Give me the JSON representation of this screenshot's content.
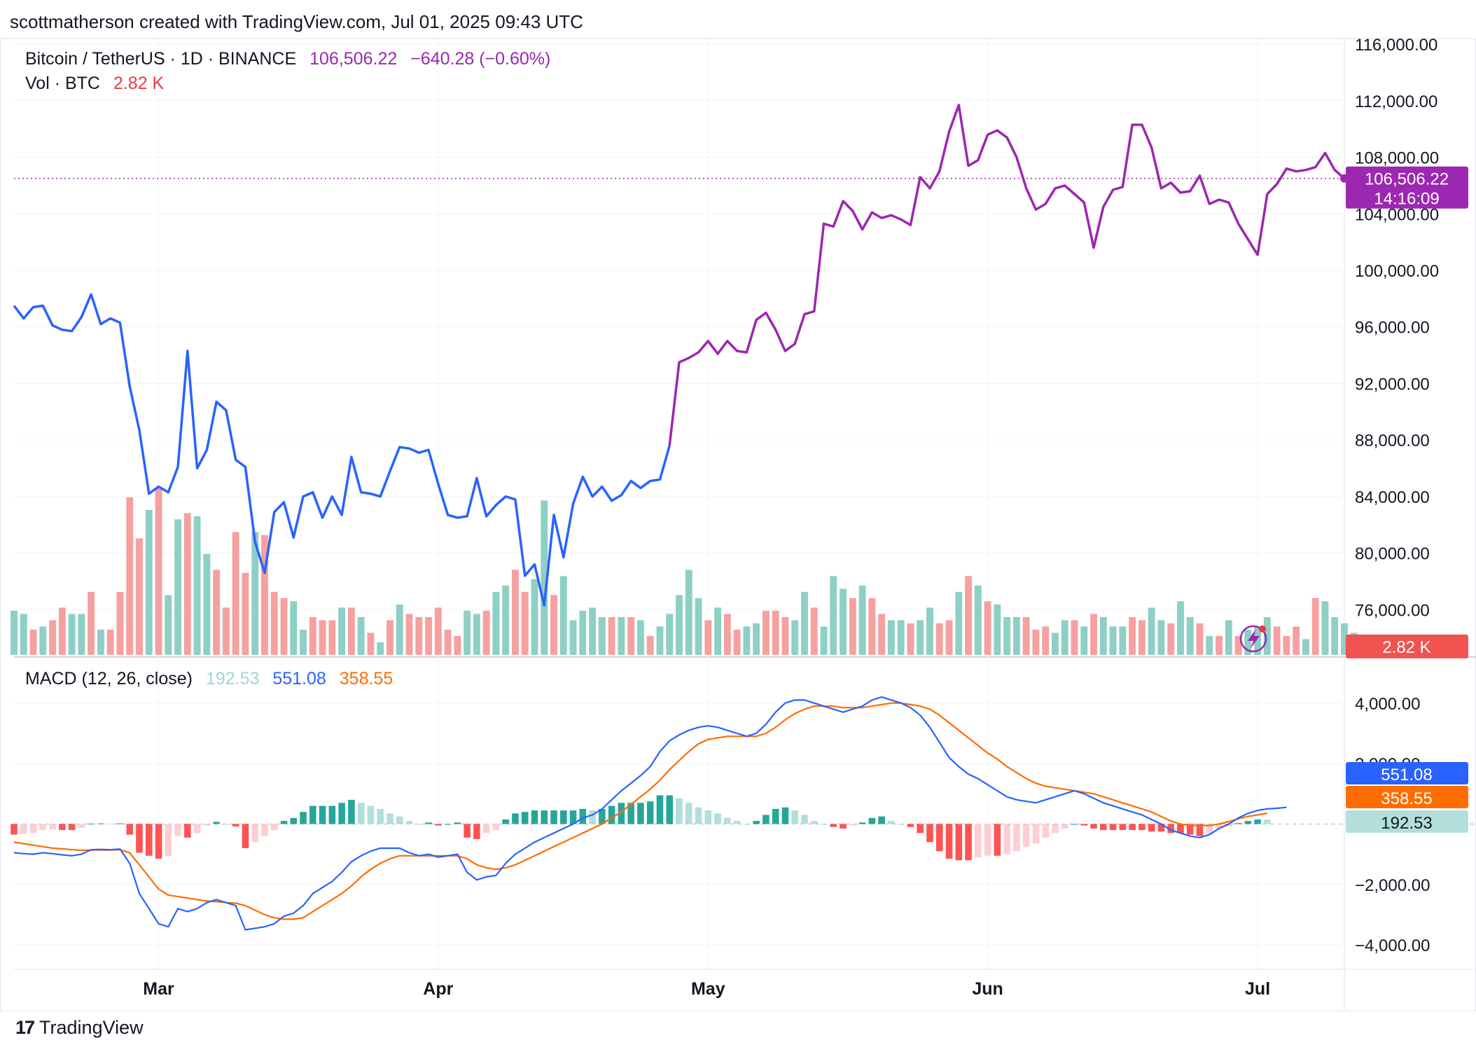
{
  "credit": "scottmatherson created with TradingView.com, Jul 01, 2025 09:43 UTC",
  "legend": {
    "symbol": "Bitcoin / TetherUS · 1D · BINANCE",
    "last_price": "106,506.22",
    "change": "−640.28 (−0.60%)",
    "vol_label": "Vol · BTC",
    "vol_value": "2.82 K",
    "macd_label": "MACD (12, 26, close)",
    "macd_hist": "192.53",
    "macd_line": "551.08",
    "macd_signal": "358.55"
  },
  "price_tag": {
    "price": "106,506.22",
    "countdown": "14:16:09"
  },
  "vol_tag": "2.82 K",
  "macd_tags": {
    "macd": "551.08",
    "signal": "358.55",
    "hist": "192.53"
  },
  "footer": {
    "brand": "TradingView"
  },
  "colors": {
    "price_blue": "#2962ff",
    "price_purple": "#9c27b0",
    "vol_up": "#8ecfc6",
    "vol_down": "#f6a0a0",
    "hist_up_strong": "#26a69a",
    "hist_up_weak": "#b2dfdb",
    "hist_down_strong": "#ff5252",
    "hist_down_weak": "#ffcdd2",
    "macd_line": "#2962ff",
    "signal_line": "#ff6d00"
  },
  "chart_data": {
    "type": "line",
    "price_axis": {
      "ticks": [
        "116,000.00",
        "112,000.00",
        "108,000.00",
        "104,000.00",
        "100,000.00",
        "96,000.00",
        "92,000.00",
        "88,000.00",
        "84,000.00",
        "80,000.00",
        "76,000.00"
      ],
      "tick_values": [
        116000,
        112000,
        108000,
        104000,
        100000,
        96000,
        92000,
        88000,
        84000,
        80000,
        76000
      ],
      "range": [
        72800,
        116400
      ]
    },
    "time_axis": {
      "labels": [
        "Mar",
        "Apr",
        "May",
        "Jun",
        "Jul"
      ],
      "label_index": [
        15,
        44,
        72,
        101,
        129
      ]
    },
    "price": [
      97500,
      96600,
      97400,
      97500,
      96100,
      95800,
      95700,
      96700,
      98300,
      96200,
      96600,
      96300,
      91800,
      88700,
      84200,
      84700,
      84300,
      86100,
      94300,
      86000,
      87300,
      90700,
      90100,
      86600,
      86100,
      80800,
      78600,
      82900,
      83600,
      81100,
      84000,
      84300,
      82500,
      84000,
      82700,
      86800,
      84300,
      84200,
      84000,
      85800,
      87500,
      87400,
      87100,
      87300,
      84900,
      82700,
      82500,
      82600,
      85300,
      82600,
      83400,
      84000,
      83800,
      78400,
      79200,
      76300,
      82700,
      79700,
      83500,
      85400,
      84000,
      84700,
      83700,
      84100,
      85100,
      84600,
      85100,
      85200,
      87600,
      93500,
      93800,
      94200,
      95000,
      94100,
      95000,
      94300,
      94200,
      96500,
      97000,
      95800,
      94300,
      94800,
      96900,
      97100,
      103300,
      103100,
      104900,
      104200,
      102900,
      104100,
      103700,
      103900,
      103600,
      103200,
      106600,
      105800,
      107000,
      109800,
      111700,
      107400,
      107800,
      109600,
      109900,
      109400,
      108000,
      105800,
      104300,
      104700,
      105800,
      106000,
      105400,
      104800,
      101600,
      104500,
      105700,
      105900,
      110300,
      110300,
      108700,
      105800,
      106200,
      105500,
      105600,
      106700,
      104700,
      105000,
      104800,
      103300,
      102200,
      101100,
      105400,
      106100,
      107200,
      107000,
      107100,
      107300,
      108300,
      107100,
      106506
    ],
    "color_split_index": 68,
    "volume": [
      {
        "v": 14,
        "up": true
      },
      {
        "v": 13,
        "up": true
      },
      {
        "v": 8,
        "up": false
      },
      {
        "v": 9,
        "up": true
      },
      {
        "v": 11,
        "up": false
      },
      {
        "v": 15,
        "up": false
      },
      {
        "v": 13,
        "up": true
      },
      {
        "v": 13,
        "up": true
      },
      {
        "v": 20,
        "up": false
      },
      {
        "v": 8,
        "up": true
      },
      {
        "v": 8,
        "up": false
      },
      {
        "v": 20,
        "up": false
      },
      {
        "v": 50,
        "up": false
      },
      {
        "v": 37,
        "up": false
      },
      {
        "v": 46,
        "up": true
      },
      {
        "v": 53,
        "up": false
      },
      {
        "v": 19,
        "up": true
      },
      {
        "v": 43,
        "up": true
      },
      {
        "v": 45,
        "up": false
      },
      {
        "v": 44,
        "up": true
      },
      {
        "v": 32,
        "up": true
      },
      {
        "v": 27,
        "up": false
      },
      {
        "v": 15,
        "up": false
      },
      {
        "v": 39,
        "up": false
      },
      {
        "v": 26,
        "up": false
      },
      {
        "v": 39,
        "up": true
      },
      {
        "v": 38,
        "up": false
      },
      {
        "v": 20,
        "up": false
      },
      {
        "v": 18,
        "up": false
      },
      {
        "v": 17,
        "up": true
      },
      {
        "v": 8,
        "up": true
      },
      {
        "v": 12,
        "up": false
      },
      {
        "v": 11,
        "up": false
      },
      {
        "v": 11,
        "up": false
      },
      {
        "v": 15,
        "up": true
      },
      {
        "v": 15,
        "up": false
      },
      {
        "v": 12,
        "up": true
      },
      {
        "v": 7,
        "up": false
      },
      {
        "v": 4,
        "up": true
      },
      {
        "v": 11,
        "up": false
      },
      {
        "v": 16,
        "up": true
      },
      {
        "v": 13,
        "up": false
      },
      {
        "v": 12,
        "up": false
      },
      {
        "v": 12,
        "up": false
      },
      {
        "v": 15,
        "up": false
      },
      {
        "v": 8,
        "up": false
      },
      {
        "v": 6,
        "up": false
      },
      {
        "v": 14,
        "up": true
      },
      {
        "v": 13,
        "up": true
      },
      {
        "v": 14,
        "up": false
      },
      {
        "v": 20,
        "up": true
      },
      {
        "v": 22,
        "up": true
      },
      {
        "v": 27,
        "up": false
      },
      {
        "v": 20,
        "up": false
      },
      {
        "v": 24,
        "up": true
      },
      {
        "v": 49,
        "up": true
      },
      {
        "v": 19,
        "up": false
      },
      {
        "v": 25,
        "up": true
      },
      {
        "v": 11,
        "up": true
      },
      {
        "v": 14,
        "up": true
      },
      {
        "v": 15,
        "up": true
      },
      {
        "v": 12,
        "up": true
      },
      {
        "v": 12,
        "up": false
      },
      {
        "v": 12,
        "up": true
      },
      {
        "v": 12,
        "up": false
      },
      {
        "v": 11,
        "up": true
      },
      {
        "v": 6,
        "up": false
      },
      {
        "v": 9,
        "up": true
      },
      {
        "v": 13,
        "up": true
      },
      {
        "v": 19,
        "up": true
      },
      {
        "v": 27,
        "up": true
      },
      {
        "v": 18,
        "up": true
      },
      {
        "v": 11,
        "up": false
      },
      {
        "v": 15,
        "up": true
      },
      {
        "v": 13,
        "up": false
      },
      {
        "v": 8,
        "up": false
      },
      {
        "v": 9,
        "up": true
      },
      {
        "v": 10,
        "up": true
      },
      {
        "v": 14,
        "up": false
      },
      {
        "v": 14,
        "up": false
      },
      {
        "v": 12,
        "up": false
      },
      {
        "v": 11,
        "up": true
      },
      {
        "v": 20,
        "up": true
      },
      {
        "v": 15,
        "up": false
      },
      {
        "v": 9,
        "up": true
      },
      {
        "v": 25,
        "up": true
      },
      {
        "v": 21,
        "up": true
      },
      {
        "v": 18,
        "up": false
      },
      {
        "v": 22,
        "up": true
      },
      {
        "v": 18,
        "up": false
      },
      {
        "v": 13,
        "up": false
      },
      {
        "v": 11,
        "up": true
      },
      {
        "v": 11,
        "up": true
      },
      {
        "v": 10,
        "up": false
      },
      {
        "v": 11,
        "up": true
      },
      {
        "v": 15,
        "up": true
      },
      {
        "v": 10,
        "up": false
      },
      {
        "v": 11,
        "up": false
      },
      {
        "v": 20,
        "up": true
      },
      {
        "v": 25,
        "up": false
      },
      {
        "v": 22,
        "up": true
      },
      {
        "v": 17,
        "up": false
      },
      {
        "v": 16,
        "up": true
      },
      {
        "v": 12,
        "up": true
      },
      {
        "v": 12,
        "up": true
      },
      {
        "v": 12,
        "up": false
      },
      {
        "v": 8,
        "up": false
      },
      {
        "v": 9,
        "up": false
      },
      {
        "v": 7,
        "up": true
      },
      {
        "v": 11,
        "up": true
      },
      {
        "v": 11,
        "up": false
      },
      {
        "v": 9,
        "up": true
      },
      {
        "v": 13,
        "up": false
      },
      {
        "v": 12,
        "up": true
      },
      {
        "v": 9,
        "up": true
      },
      {
        "v": 9,
        "up": true
      },
      {
        "v": 12,
        "up": false
      },
      {
        "v": 11,
        "up": false
      },
      {
        "v": 15,
        "up": true
      },
      {
        "v": 11,
        "up": true
      },
      {
        "v": 10,
        "up": false
      },
      {
        "v": 17,
        "up": true
      },
      {
        "v": 12,
        "up": true
      },
      {
        "v": 10,
        "up": false
      },
      {
        "v": 6,
        "up": true
      },
      {
        "v": 6,
        "up": false
      },
      {
        "v": 11,
        "up": true
      },
      {
        "v": 6,
        "up": false
      },
      {
        "v": 8,
        "up": true
      },
      {
        "v": 9,
        "up": true
      },
      {
        "v": 12,
        "up": true
      },
      {
        "v": 9,
        "up": false
      },
      {
        "v": 6,
        "up": false
      },
      {
        "v": 9,
        "up": false
      },
      {
        "v": 5,
        "up": true
      },
      {
        "v": 18,
        "up": false
      },
      {
        "v": 17,
        "up": true
      },
      {
        "v": 12,
        "up": true
      },
      {
        "v": 10,
        "up": true
      },
      {
        "v": 7,
        "up": true
      },
      {
        "v": 3,
        "up": true
      },
      {
        "v": 5,
        "up": true
      },
      {
        "v": 2,
        "up": true
      }
    ],
    "macd_axis": {
      "ticks": [
        "4,000.00",
        "2,000.00",
        "−2,000.00",
        "−4,000.00"
      ],
      "tick_values": [
        4000,
        2000,
        -2000,
        -4000
      ],
      "range": [
        -4600,
        4900
      ]
    },
    "macd": [
      -950,
      -980,
      -1000,
      -950,
      -980,
      -1020,
      -1050,
      -1000,
      -850,
      -840,
      -850,
      -830,
      -1300,
      -2300,
      -2800,
      -3300,
      -3400,
      -2800,
      -2900,
      -2800,
      -2600,
      -2500,
      -2600,
      -2700,
      -3500,
      -3450,
      -3400,
      -3300,
      -3050,
      -2950,
      -2700,
      -2300,
      -2100,
      -1900,
      -1600,
      -1250,
      -1050,
      -900,
      -800,
      -800,
      -800,
      -950,
      -1050,
      -1000,
      -1100,
      -1050,
      -1000,
      -1600,
      -1850,
      -1750,
      -1700,
      -1300,
      -1000,
      -800,
      -600,
      -450,
      -300,
      -150,
      0,
      200,
      300,
      500,
      800,
      1100,
      1350,
      1600,
      1900,
      2400,
      2750,
      2950,
      3100,
      3200,
      3250,
      3200,
      3100,
      3000,
      2900,
      3000,
      3300,
      3700,
      4000,
      4100,
      4100,
      4000,
      3900,
      3800,
      3700,
      3800,
      3900,
      4100,
      4200,
      4100,
      4000,
      3850,
      3600,
      3200,
      2700,
      2200,
      1900,
      1650,
      1500,
      1300,
      1100,
      900,
      800,
      750,
      700,
      800,
      900,
      1000,
      1100,
      1000,
      850,
      700,
      600,
      500,
      400,
      300,
      150,
      0,
      -200,
      -300,
      -400,
      -450,
      -350,
      -150,
      0,
      200,
      350,
      450,
      500,
      520,
      550
    ],
    "signal": [
      -600,
      -650,
      -700,
      -750,
      -800,
      -820,
      -850,
      -870,
      -860,
      -860,
      -860,
      -850,
      -950,
      -1350,
      -1750,
      -2150,
      -2350,
      -2400,
      -2450,
      -2500,
      -2550,
      -2570,
      -2600,
      -2620,
      -2700,
      -2850,
      -3000,
      -3100,
      -3150,
      -3150,
      -3100,
      -2900,
      -2700,
      -2500,
      -2300,
      -2050,
      -1750,
      -1500,
      -1300,
      -1150,
      -1050,
      -1050,
      -1050,
      -1050,
      -1050,
      -1050,
      -1050,
      -1150,
      -1350,
      -1450,
      -1500,
      -1450,
      -1350,
      -1200,
      -1050,
      -900,
      -750,
      -600,
      -450,
      -300,
      -150,
      0,
      200,
      400,
      650,
      900,
      1150,
      1450,
      1800,
      2100,
      2400,
      2650,
      2800,
      2850,
      2900,
      2900,
      2900,
      2900,
      3000,
      3200,
      3450,
      3650,
      3800,
      3900,
      3900,
      3900,
      3850,
      3850,
      3850,
      3900,
      3950,
      4000,
      4000,
      3950,
      3900,
      3800,
      3600,
      3350,
      3100,
      2850,
      2600,
      2350,
      2150,
      1900,
      1700,
      1500,
      1350,
      1250,
      1200,
      1150,
      1100,
      1050,
      1000,
      900,
      800,
      700,
      600,
      500,
      400,
      250,
      100,
      0,
      -50,
      -50,
      -50,
      0,
      80,
      170,
      250,
      300,
      358
    ]
  }
}
